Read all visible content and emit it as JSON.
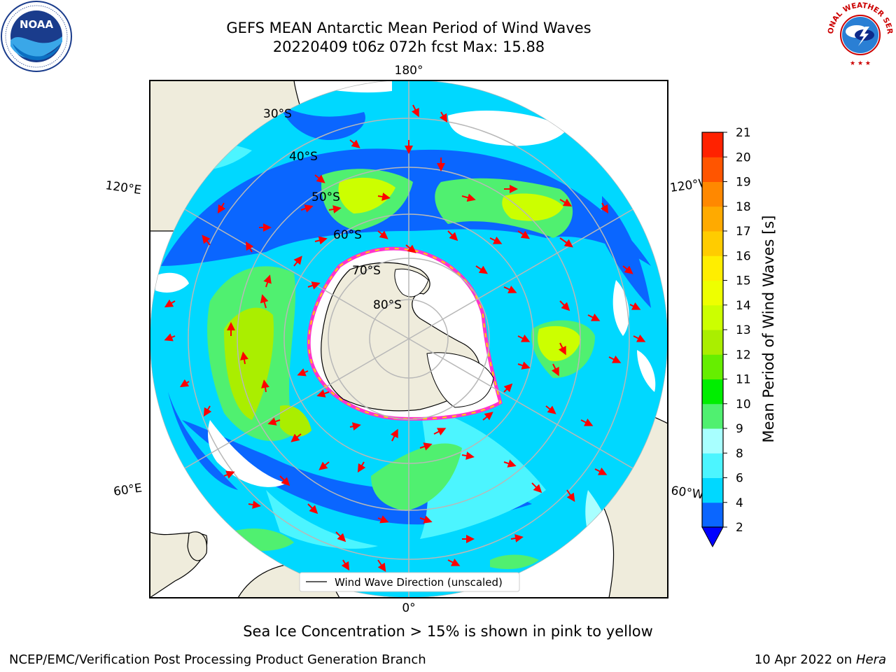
{
  "title": {
    "line1": "GEFS MEAN Antarctic Mean Period of Wind Waves",
    "line2": "20220409 t06z 072h fcst   Max: 15.88"
  },
  "logos": {
    "noaa": "NOAA",
    "nws": "NATIONAL WEATHER SERVICE"
  },
  "map": {
    "projection": "south-polar-stereographic",
    "lon_labels": [
      "180°",
      "120°E",
      "120°W",
      "60°E",
      "60°W",
      "0°"
    ],
    "lat_labels": [
      "30°S",
      "40°S",
      "50°S",
      "60°S",
      "70°S",
      "80°S"
    ],
    "legend": "Wind Wave Direction (unscaled)",
    "colors": {
      "land": "#efecdc",
      "ice_edge": "#ff33cc",
      "ice_inner": "#ffd700",
      "arrows": "#ff0000",
      "grid": "#b8b8b8"
    }
  },
  "colorbar": {
    "label": "Mean Period of Wind Waves [s]",
    "ticks": [
      "2",
      "4",
      "6",
      "8",
      "9",
      "10",
      "11",
      "12",
      "13",
      "14",
      "15",
      "16",
      "17",
      "18",
      "19",
      "20",
      "21"
    ],
    "colors": [
      "#0a66ff",
      "#00d8ff",
      "#4cf5ff",
      "#a8ffff",
      "#50f070",
      "#00ee00",
      "#66ee00",
      "#aaee00",
      "#ccff00",
      "#eeff00",
      "#ffee00",
      "#ffcc00",
      "#ffaa00",
      "#ff8800",
      "#ff5500",
      "#ff2200"
    ],
    "under_color": "#0000ff"
  },
  "footer": {
    "note": "Sea Ice Concentration > 15% is shown in pink to yellow",
    "branch": "NCEP/EMC/Verification Post Processing Product Generation Branch",
    "date": "10 Apr 2022 on ",
    "host": "Hera"
  }
}
